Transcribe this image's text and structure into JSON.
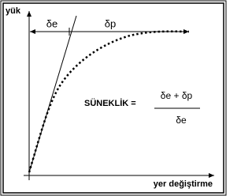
{
  "axis_labels": {
    "y": "yük",
    "x": "yer değiştirme"
  },
  "segments": {
    "elastic": "δe",
    "plastic": "δp"
  },
  "formula": {
    "label": "SÜNEKLİK =",
    "numerator": "δe + δp",
    "denominator": "δe"
  }
}
